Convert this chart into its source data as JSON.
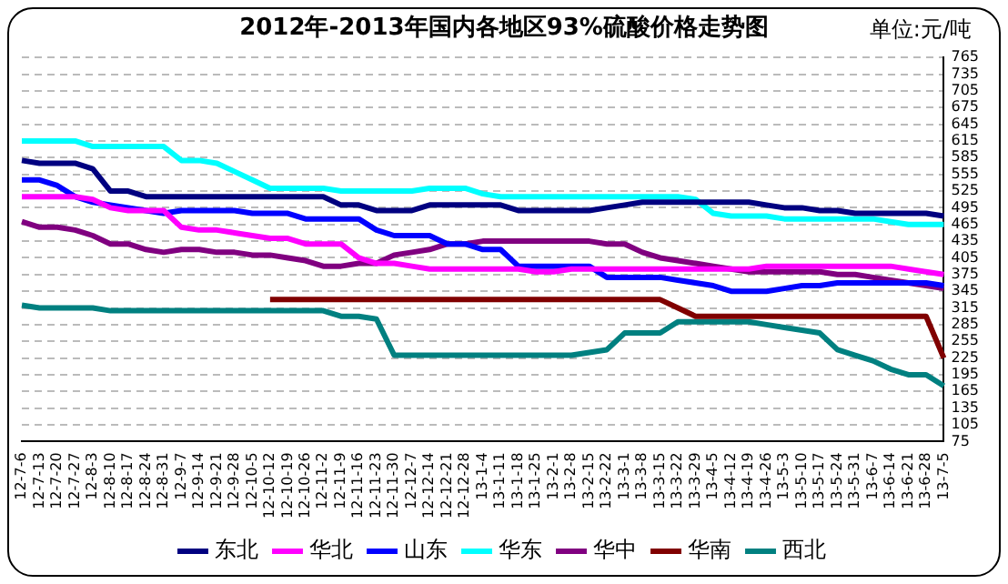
{
  "chart_data": {
    "type": "line",
    "title": "2012年-2013年国内各地区93%硫酸价格走势图",
    "annotations": [
      "单位:元/吨"
    ],
    "categories": [
      "12-7-6",
      "12-7-13",
      "12-7-20",
      "12-7-27",
      "12-8-3",
      "12-8-10",
      "12-8-17",
      "12-8-24",
      "12-8-31",
      "12-9-7",
      "12-9-14",
      "12-9-21",
      "12-9-28",
      "12-10-5",
      "12-10-12",
      "12-10-19",
      "12-10-26",
      "12-11-2",
      "12-11-9",
      "12-11-16",
      "12-11-23",
      "12-11-30",
      "12-12-7",
      "12-12-14",
      "12-12-21",
      "12-12-28",
      "13-1-4",
      "13-1-11",
      "13-1-18",
      "13-1-25",
      "13-2-1",
      "13-2-8",
      "13-2-15",
      "13-2-22",
      "13-3-1",
      "13-3-8",
      "13-3-15",
      "13-3-22",
      "13-3-29",
      "13-4-5",
      "13-4-12",
      "13-4-19",
      "13-4-26",
      "13-5-3",
      "13-5-10",
      "13-5-17",
      "13-5-24",
      "13-5-31",
      "13-6-7",
      "13-6-14",
      "13-6-21",
      "13-6-28",
      "13-7-5"
    ],
    "series": [
      {
        "name": "东北",
        "color": "#000080",
        "values": [
          580,
          575,
          575,
          575,
          565,
          525,
          525,
          515,
          515,
          515,
          515,
          515,
          515,
          515,
          515,
          515,
          515,
          515,
          500,
          500,
          490,
          490,
          490,
          500,
          500,
          500,
          500,
          500,
          490,
          490,
          490,
          490,
          490,
          495,
          500,
          505,
          505,
          505,
          505,
          505,
          505,
          505,
          500,
          495,
          495,
          490,
          490,
          485,
          485,
          485,
          485,
          485,
          480
        ]
      },
      {
        "name": "华北",
        "color": "#ff00ff",
        "values": [
          515,
          515,
          515,
          515,
          510,
          495,
          490,
          490,
          490,
          460,
          455,
          455,
          450,
          445,
          440,
          440,
          430,
          430,
          430,
          405,
          395,
          395,
          390,
          385,
          385,
          385,
          385,
          385,
          385,
          380,
          380,
          385,
          385,
          385,
          385,
          385,
          385,
          385,
          385,
          385,
          385,
          385,
          390,
          390,
          390,
          390,
          390,
          390,
          390,
          390,
          385,
          380,
          375
        ]
      },
      {
        "name": "山东",
        "color": "#0000ff",
        "values": [
          545,
          545,
          535,
          515,
          505,
          500,
          495,
          490,
          485,
          490,
          490,
          490,
          490,
          485,
          485,
          485,
          475,
          475,
          475,
          475,
          455,
          445,
          445,
          445,
          430,
          430,
          420,
          420,
          390,
          390,
          390,
          390,
          390,
          370,
          370,
          370,
          370,
          365,
          360,
          355,
          345,
          345,
          345,
          350,
          355,
          355,
          360,
          360,
          360,
          360,
          360,
          360,
          355
        ]
      },
      {
        "name": "华东",
        "color": "#00ffff",
        "values": [
          615,
          615,
          615,
          615,
          605,
          605,
          605,
          605,
          605,
          580,
          580,
          575,
          560,
          545,
          530,
          530,
          530,
          530,
          525,
          525,
          525,
          525,
          525,
          530,
          530,
          530,
          520,
          515,
          515,
          515,
          515,
          515,
          515,
          515,
          515,
          515,
          515,
          515,
          510,
          485,
          480,
          480,
          480,
          475,
          475,
          475,
          475,
          475,
          475,
          470,
          465,
          465,
          465
        ]
      },
      {
        "name": "华中",
        "color": "#800080",
        "values": [
          470,
          460,
          460,
          455,
          445,
          430,
          430,
          420,
          415,
          420,
          420,
          415,
          415,
          410,
          410,
          405,
          400,
          390,
          390,
          395,
          395,
          410,
          415,
          420,
          430,
          430,
          435,
          435,
          435,
          435,
          435,
          435,
          435,
          430,
          430,
          415,
          405,
          400,
          395,
          390,
          385,
          380,
          380,
          380,
          380,
          380,
          375,
          375,
          370,
          365,
          360,
          355,
          350
        ]
      },
      {
        "name": "华南",
        "color": "#800000",
        "values": [
          null,
          null,
          null,
          null,
          null,
          null,
          null,
          null,
          null,
          null,
          null,
          null,
          null,
          null,
          330,
          330,
          330,
          330,
          330,
          330,
          330,
          330,
          330,
          330,
          330,
          330,
          330,
          330,
          330,
          330,
          330,
          330,
          330,
          330,
          330,
          330,
          330,
          315,
          300,
          300,
          300,
          300,
          300,
          300,
          300,
          300,
          300,
          300,
          300,
          300,
          300,
          300,
          225
        ]
      },
      {
        "name": "西北",
        "color": "#008080",
        "values": [
          320,
          315,
          315,
          315,
          315,
          310,
          310,
          310,
          310,
          310,
          310,
          310,
          310,
          310,
          310,
          310,
          310,
          310,
          300,
          300,
          295,
          230,
          230,
          230,
          230,
          230,
          230,
          230,
          230,
          230,
          230,
          230,
          235,
          240,
          270,
          270,
          270,
          290,
          290,
          290,
          290,
          290,
          285,
          280,
          275,
          270,
          240,
          230,
          220,
          205,
          195,
          195,
          175
        ]
      }
    ],
    "ylim": [
      75,
      765
    ],
    "yticks": [
      75,
      105,
      135,
      165,
      195,
      225,
      255,
      285,
      315,
      345,
      375,
      405,
      435,
      465,
      495,
      525,
      555,
      585,
      615,
      645,
      675,
      705,
      735,
      765
    ],
    "grid": "y",
    "legend": "bottom",
    "marker": "none",
    "line_style": "solid"
  }
}
